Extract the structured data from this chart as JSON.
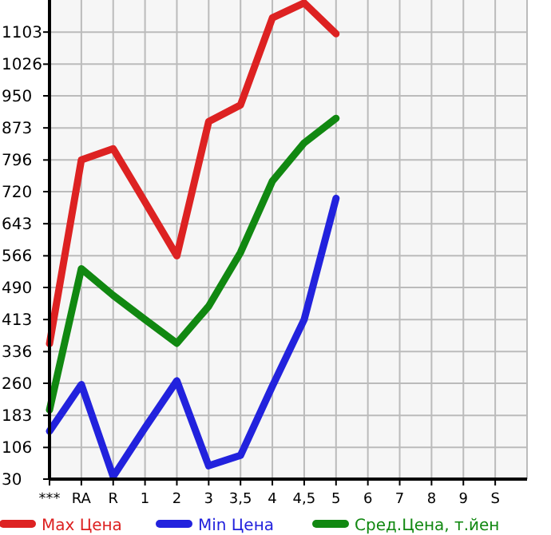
{
  "chart_data": {
    "type": "line",
    "categories": [
      "***",
      "RA",
      "R",
      "1",
      "2",
      "3",
      "3,5",
      "4",
      "4,5",
      "5",
      "6",
      "7",
      "8",
      "9",
      "S"
    ],
    "ylim": [
      30,
      1180
    ],
    "yticks": [
      30,
      106,
      183,
      260,
      336,
      413,
      490,
      566,
      643,
      720,
      796,
      873,
      950,
      1026,
      1103
    ],
    "grid": true,
    "legend": "bottom",
    "marker": "none",
    "line_style": "solid",
    "series": [
      {
        "name": "Max Цена",
        "color": "#dd2222",
        "values": [
          355,
          796,
          823,
          695,
          566,
          888,
          928,
          1137,
          1173,
          1099,
          null,
          null,
          null,
          null,
          null
        ]
      },
      {
        "name": "Min Цена",
        "color": "#2222dd",
        "values": [
          145,
          257,
          36,
          153,
          266,
          62,
          87,
          253,
          413,
          704,
          null,
          null,
          null,
          null,
          null
        ]
      },
      {
        "name": "Сред.Цена, т.йен",
        "color": "#118811",
        "values": [
          196,
          535,
          471,
          413,
          356,
          445,
          574,
          745,
          837,
          896,
          null,
          null,
          null,
          null,
          null
        ]
      }
    ]
  }
}
